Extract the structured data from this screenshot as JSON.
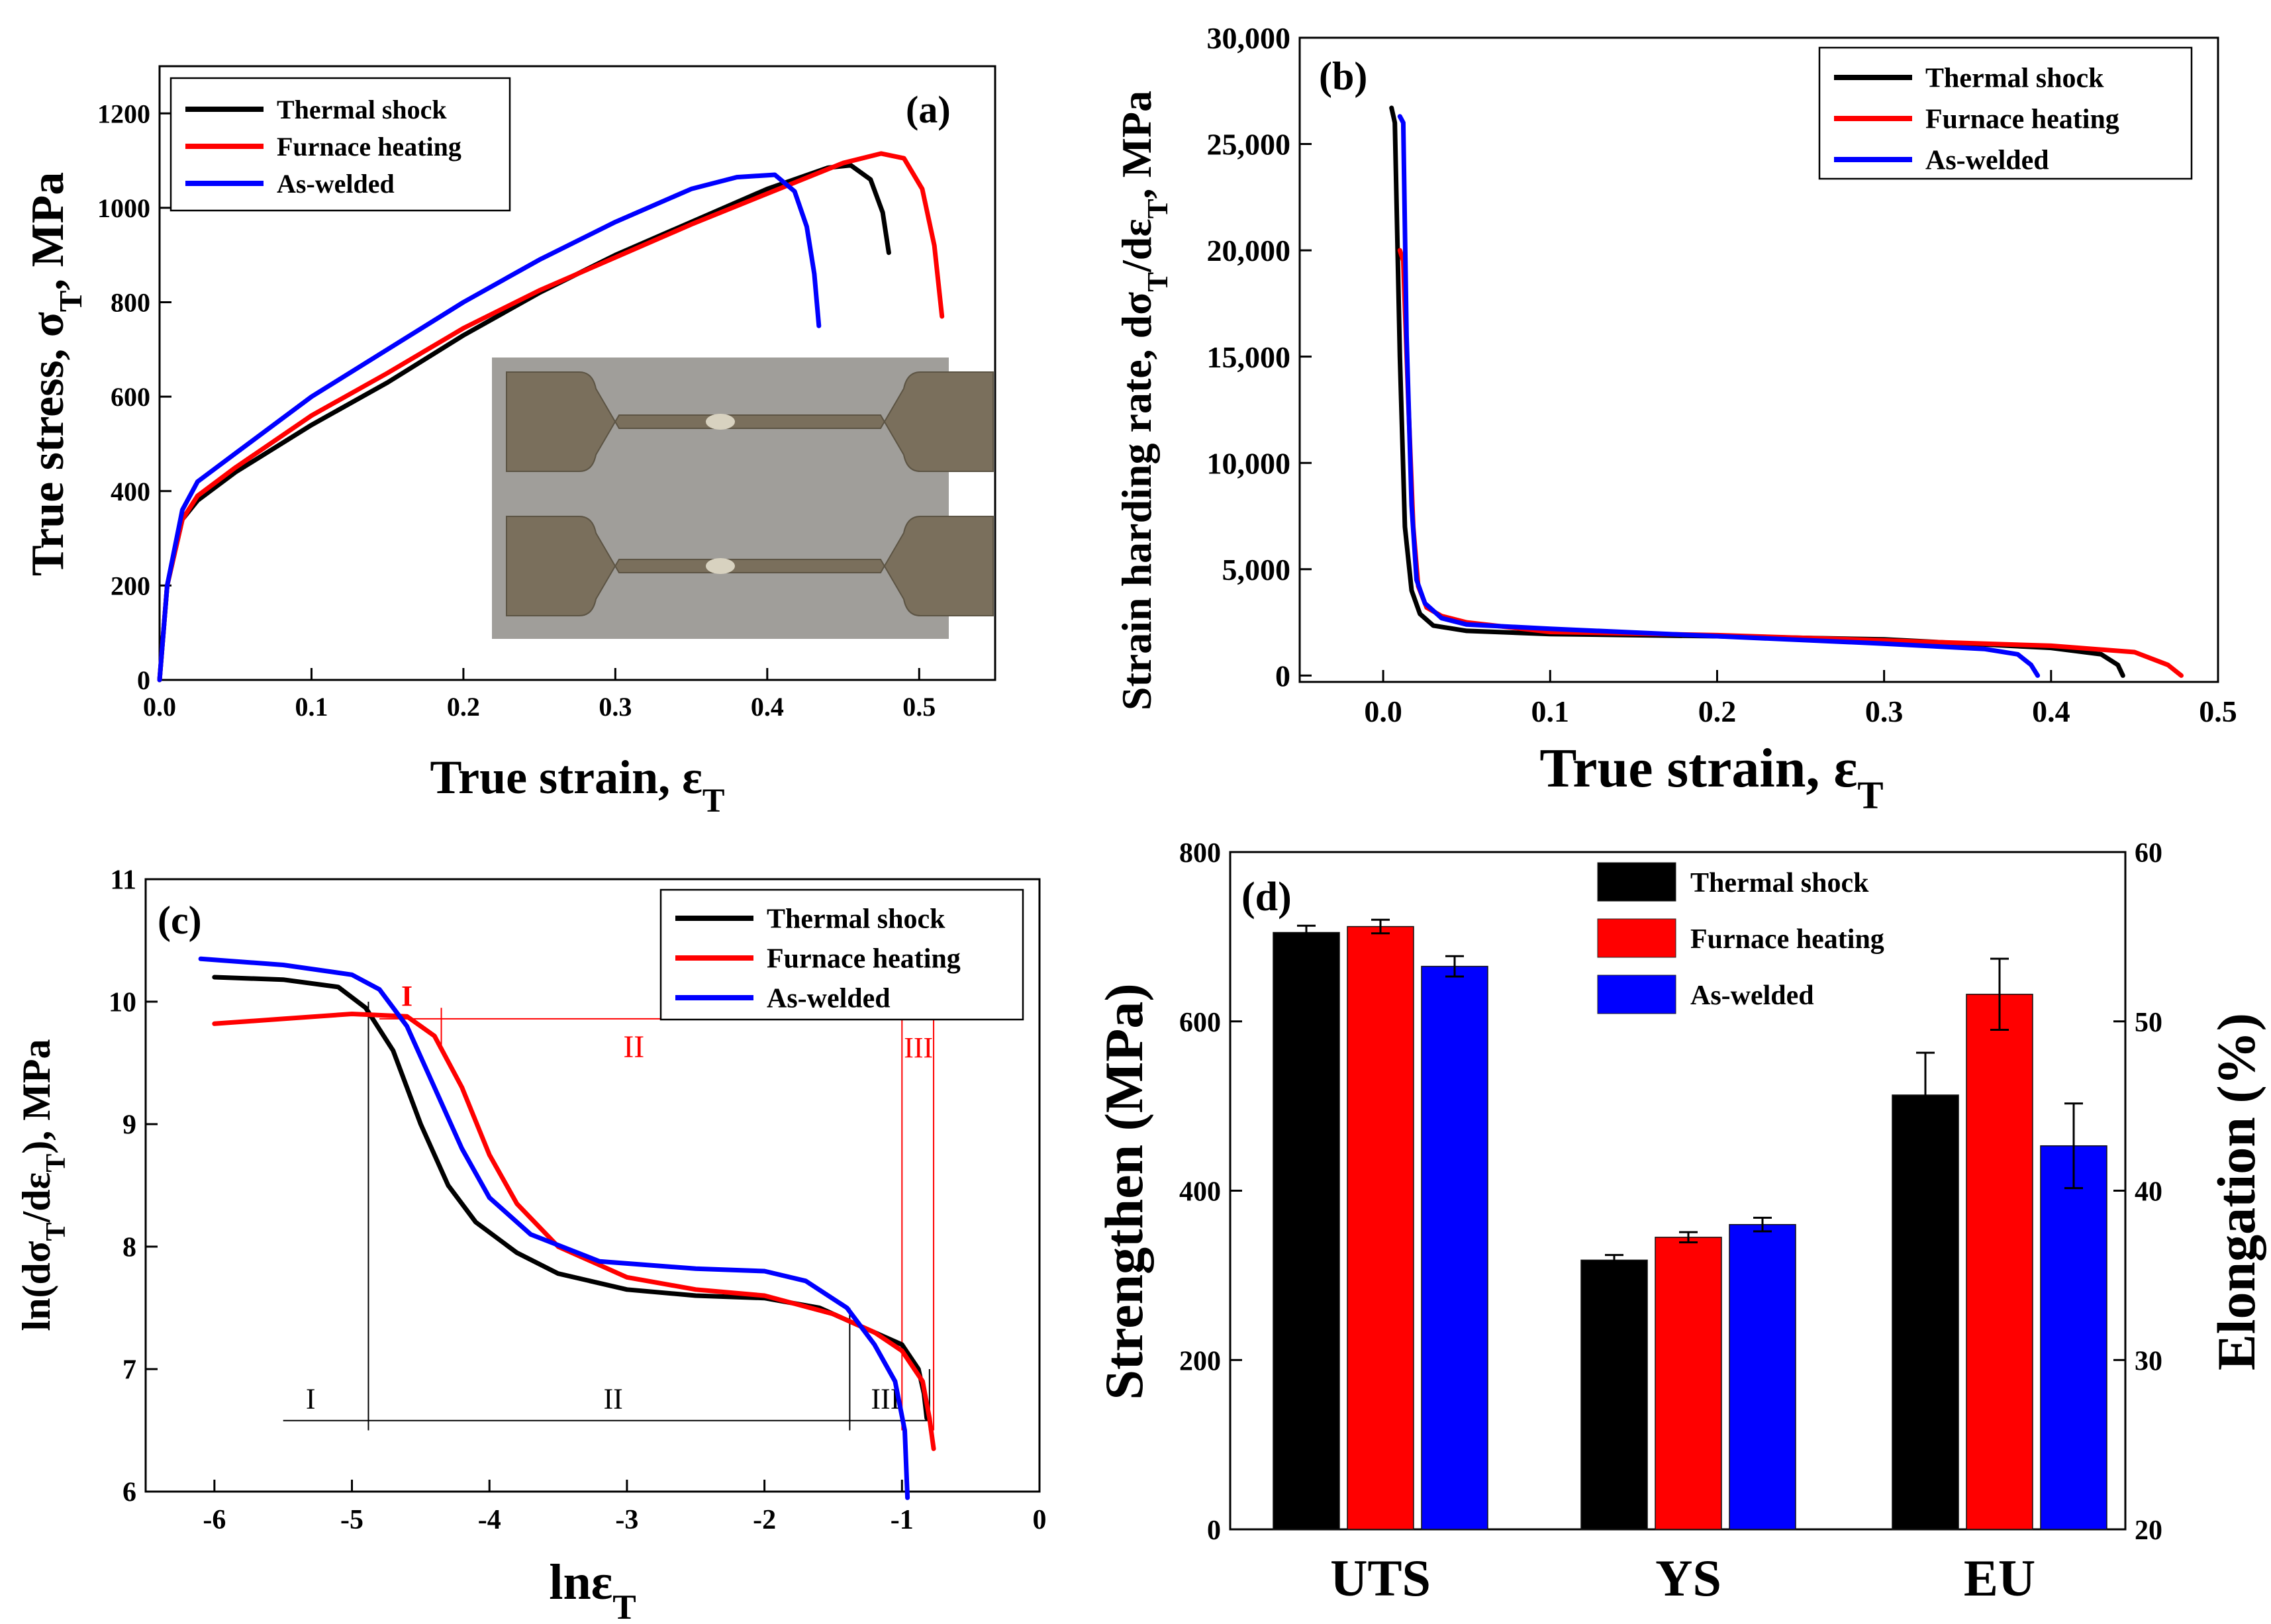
{
  "colors": {
    "thermal": "#000000",
    "furnace": "#ff0000",
    "welded": "#0000ff",
    "axis": "#000000",
    "photo_bg": "#a09e9a",
    "specimen": "#7a6f5c"
  },
  "chart_data": [
    {
      "id": "a",
      "type": "line",
      "panel_label": "(a)",
      "xlabel": "True strain, ε",
      "xlabel_sub": "T",
      "ylabel": "True stress, σ",
      "ylabel_sub": "T",
      "ylabel_tail": ", MPa",
      "xlim": [
        0.0,
        0.55
      ],
      "ylim": [
        0,
        1300
      ],
      "xticks": [
        "0.0",
        "0.1",
        "0.2",
        "0.3",
        "0.4",
        "0.5"
      ],
      "yticks": [
        "0",
        "200",
        "400",
        "600",
        "800",
        "1000",
        "1200"
      ],
      "legend": [
        "Thermal shock",
        "Furnace heating",
        "As-welded"
      ],
      "series": [
        {
          "name": "Thermal shock",
          "x": [
            0,
            0.005,
            0.015,
            0.025,
            0.05,
            0.1,
            0.15,
            0.2,
            0.25,
            0.3,
            0.35,
            0.4,
            0.44,
            0.455,
            0.468,
            0.476,
            0.48
          ],
          "y": [
            0,
            200,
            340,
            380,
            440,
            540,
            630,
            730,
            820,
            900,
            970,
            1040,
            1085,
            1090,
            1060,
            990,
            905
          ]
        },
        {
          "name": "Furnace heating",
          "x": [
            0,
            0.005,
            0.015,
            0.025,
            0.05,
            0.1,
            0.15,
            0.2,
            0.25,
            0.3,
            0.35,
            0.4,
            0.45,
            0.475,
            0.49,
            0.502,
            0.51,
            0.515
          ],
          "y": [
            0,
            200,
            340,
            390,
            450,
            560,
            650,
            745,
            825,
            895,
            965,
            1030,
            1095,
            1115,
            1105,
            1040,
            920,
            770
          ]
        },
        {
          "name": "As-welded",
          "x": [
            0,
            0.005,
            0.015,
            0.025,
            0.05,
            0.1,
            0.15,
            0.2,
            0.25,
            0.3,
            0.35,
            0.38,
            0.405,
            0.418,
            0.426,
            0.431,
            0.434
          ],
          "y": [
            0,
            200,
            360,
            420,
            480,
            600,
            700,
            800,
            890,
            970,
            1040,
            1065,
            1070,
            1035,
            960,
            860,
            750
          ]
        }
      ],
      "inset": "photo"
    },
    {
      "id": "b",
      "type": "line",
      "panel_label": "(b)",
      "xlabel": "True strain, ε",
      "xlabel_sub": "T",
      "ylabel": "Strain harding rate, dσ",
      "ylabel_sub": "T",
      "ylabel_mid": "/dε",
      "ylabel_sub2": "T",
      "ylabel_tail": ", MPa",
      "xlim": [
        -0.05,
        0.5
      ],
      "ylim": [
        -300,
        30000
      ],
      "xticks": [
        "0.0",
        "0.1",
        "0.2",
        "0.3",
        "0.4",
        "0.5"
      ],
      "yticks": [
        "0",
        "5,000",
        "10,000",
        "15,000",
        "20,000",
        "25,000",
        "30,000"
      ],
      "legend": [
        "Thermal shock",
        "Furnace heating",
        "As-welded"
      ],
      "series": [
        {
          "name": "Thermal shock",
          "x": [
            0.005,
            0.007,
            0.01,
            0.013,
            0.017,
            0.022,
            0.03,
            0.05,
            0.1,
            0.2,
            0.3,
            0.4,
            0.43,
            0.44,
            0.443
          ],
          "y": [
            26700,
            26000,
            15000,
            7000,
            4000,
            2900,
            2350,
            2100,
            1950,
            1850,
            1700,
            1300,
            1000,
            500,
            0
          ]
        },
        {
          "name": "Furnace heating",
          "x": [
            0.01,
            0.012,
            0.015,
            0.018,
            0.021,
            0.026,
            0.035,
            0.05,
            0.1,
            0.2,
            0.3,
            0.4,
            0.45,
            0.47,
            0.478
          ],
          "y": [
            20000,
            19500,
            13000,
            7000,
            4200,
            3200,
            2800,
            2500,
            2050,
            1900,
            1650,
            1400,
            1100,
            500,
            0
          ]
        },
        {
          "name": "As-welded",
          "x": [
            0.01,
            0.012,
            0.014,
            0.017,
            0.02,
            0.025,
            0.035,
            0.05,
            0.1,
            0.2,
            0.3,
            0.36,
            0.38,
            0.388,
            0.392
          ],
          "y": [
            26300,
            26000,
            16000,
            8000,
            4500,
            3400,
            2700,
            2400,
            2200,
            1850,
            1500,
            1250,
            1000,
            500,
            0
          ]
        }
      ]
    },
    {
      "id": "c",
      "type": "line",
      "panel_label": "(c)",
      "xlabel": "lnε",
      "xlabel_sub": "T",
      "ylabel": "ln(dσ",
      "ylabel_sub": "T",
      "ylabel_mid": "/dε",
      "ylabel_sub2": "T",
      "ylabel_tail": "), MPa",
      "xlim": [
        -6.5,
        0
      ],
      "ylim": [
        6,
        11
      ],
      "xticks": [
        "-6",
        "-5",
        "-4",
        "-3",
        "-2",
        "-1",
        "0"
      ],
      "yticks": [
        "6",
        "7",
        "8",
        "9",
        "10",
        "11"
      ],
      "legend": [
        "Thermal shock",
        "Furnace heating",
        "As-welded"
      ],
      "series": [
        {
          "name": "Thermal shock",
          "x": [
            -6.0,
            -5.5,
            -5.1,
            -4.9,
            -4.7,
            -4.5,
            -4.3,
            -4.1,
            -3.8,
            -3.5,
            -3.0,
            -2.5,
            -2.0,
            -1.6,
            -1.3,
            -1.0,
            -0.88,
            -0.84,
            -0.82
          ],
          "y": [
            10.2,
            10.18,
            10.12,
            9.95,
            9.6,
            9.0,
            8.5,
            8.2,
            7.95,
            7.78,
            7.65,
            7.6,
            7.58,
            7.5,
            7.35,
            7.2,
            7.0,
            6.8,
            6.6
          ]
        },
        {
          "name": "Furnace heating",
          "x": [
            -6.0,
            -5.5,
            -5.0,
            -4.6,
            -4.4,
            -4.2,
            -4.0,
            -3.8,
            -3.5,
            -3.0,
            -2.5,
            -2.0,
            -1.5,
            -1.2,
            -1.0,
            -0.85,
            -0.8,
            -0.77
          ],
          "y": [
            9.82,
            9.86,
            9.9,
            9.88,
            9.72,
            9.3,
            8.75,
            8.35,
            8.0,
            7.75,
            7.65,
            7.6,
            7.45,
            7.3,
            7.15,
            6.9,
            6.6,
            6.35
          ]
        },
        {
          "name": "As-welded",
          "x": [
            -6.1,
            -5.5,
            -5.0,
            -4.8,
            -4.6,
            -4.4,
            -4.2,
            -4.0,
            -3.7,
            -3.2,
            -2.5,
            -2.0,
            -1.7,
            -1.4,
            -1.2,
            -1.05,
            -0.98,
            -0.96
          ],
          "y": [
            10.35,
            10.3,
            10.22,
            10.1,
            9.8,
            9.3,
            8.8,
            8.4,
            8.1,
            7.88,
            7.82,
            7.8,
            7.72,
            7.5,
            7.2,
            6.9,
            6.5,
            5.95
          ]
        }
      ],
      "regions_black": [
        "I",
        "II",
        "III"
      ],
      "regions_red": [
        "I",
        "II",
        "III"
      ],
      "boundaries_black": [
        -4.88,
        -1.38,
        -0.8
      ],
      "boundaries_red": [
        -4.35,
        -1.0,
        -0.77
      ]
    },
    {
      "id": "d",
      "type": "bar",
      "panel_label": "(d)",
      "categories": [
        "UTS",
        "YS",
        "EU"
      ],
      "ylabel": "Strengthen (MPa)",
      "ylabel_right": "Elongation (%)",
      "ylim": [
        0,
        800
      ],
      "ylim_right": [
        20,
        60
      ],
      "yticks": [
        "0",
        "200",
        "400",
        "600",
        "800"
      ],
      "yticks_right": [
        "20",
        "30",
        "40",
        "50",
        "60"
      ],
      "legend": [
        "Thermal shock",
        "Furnace heating",
        "As-welded"
      ],
      "series": [
        {
          "name": "Thermal shock",
          "values": [
            705,
            318,
            513
          ],
          "errors": [
            8,
            6,
            50
          ]
        },
        {
          "name": "Furnace heating",
          "values": [
            712,
            345,
            632
          ],
          "errors": [
            8,
            6,
            42
          ]
        },
        {
          "name": "As-welded",
          "values": [
            665,
            360,
            453
          ],
          "errors": [
            12,
            8,
            50
          ]
        }
      ],
      "right_axis_note": "EU bars read on the right axis (Elongation %)",
      "eu_percent": [
        45.6,
        51.6,
        42.6
      ]
    }
  ]
}
